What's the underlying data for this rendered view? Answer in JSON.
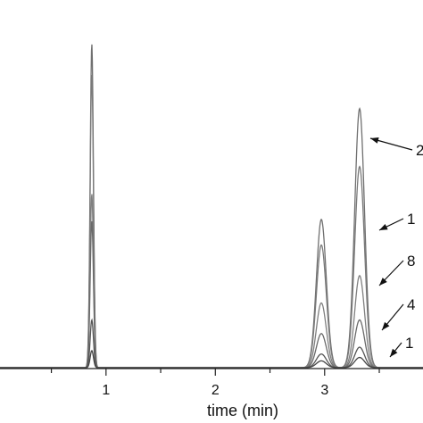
{
  "chart_data": {
    "type": "line",
    "xlabel": "time (min)",
    "xlim": [
      0.03,
      3.9
    ],
    "ylim": [
      0,
      100
    ],
    "grid": false,
    "xticks": [
      1,
      2,
      3
    ],
    "xtick_labels": [
      "1",
      "2",
      "3"
    ],
    "peaks": [
      {
        "center": 0.87,
        "width": 0.015
      },
      {
        "center": 2.97,
        "width": 0.045
      },
      {
        "center": 3.32,
        "width": 0.045
      }
    ],
    "series": [
      {
        "label": "2",
        "heights": [
          95,
          43.5,
          76
        ]
      },
      {
        "label": "1",
        "heights": [
          86,
          36,
          59
        ]
      },
      {
        "label": "8",
        "heights": [
          51,
          19,
          27
        ]
      },
      {
        "label": "4",
        "heights": [
          43,
          10,
          14
        ]
      },
      {
        "label": "1",
        "heights": [
          14,
          4,
          6
        ]
      },
      {
        "heights": [
          5,
          2,
          3
        ]
      }
    ],
    "annotations": [
      "2",
      "1",
      "8",
      "4",
      "1"
    ]
  }
}
